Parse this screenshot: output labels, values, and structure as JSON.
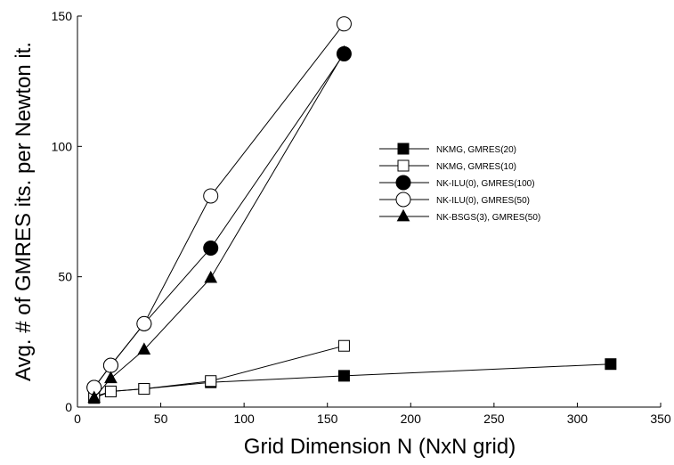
{
  "chart_data": {
    "type": "scatter",
    "title": "",
    "xlabel": "Grid Dimension N (NxN grid)",
    "ylabel": "Avg. # of GMRES its. per Newton it.",
    "xlim": [
      0,
      350
    ],
    "ylim": [
      0,
      150
    ],
    "xticks": [
      0,
      50,
      100,
      150,
      200,
      250,
      300,
      350
    ],
    "yticks": [
      0,
      50,
      100,
      150
    ],
    "grid": false,
    "legend_position": "right",
    "series": [
      {
        "name": "NKMG, GMRES(20)",
        "marker": "square",
        "filled": true,
        "points": [
          [
            10,
            3.5
          ],
          [
            20,
            6
          ],
          [
            40,
            7
          ],
          [
            80,
            9.5
          ],
          [
            160,
            12
          ],
          [
            320,
            16.5
          ]
        ]
      },
      {
        "name": "NKMG, GMRES(10)",
        "marker": "square",
        "filled": false,
        "points": [
          [
            10,
            4
          ],
          [
            20,
            6
          ],
          [
            40,
            7
          ],
          [
            80,
            10
          ],
          [
            160,
            23.5
          ]
        ]
      },
      {
        "name": "NK-ILU(0), GMRES(100)",
        "marker": "circle",
        "filled": true,
        "points": [
          [
            10,
            7.5
          ],
          [
            20,
            16
          ],
          [
            40,
            32
          ],
          [
            80,
            61
          ],
          [
            160,
            135.5
          ]
        ]
      },
      {
        "name": "NK-ILU(0), GMRES(50)",
        "marker": "circle",
        "filled": false,
        "points": [
          [
            10,
            7.5
          ],
          [
            20,
            16
          ],
          [
            40,
            32
          ],
          [
            80,
            81
          ],
          [
            160,
            147
          ]
        ]
      },
      {
        "name": "NK-BSGS(3), GMRES(50)",
        "marker": "triangle",
        "filled": true,
        "points": [
          [
            10,
            3.5
          ],
          [
            20,
            11
          ],
          [
            40,
            22
          ],
          [
            80,
            49.5
          ],
          [
            160,
            136
          ]
        ]
      }
    ]
  }
}
